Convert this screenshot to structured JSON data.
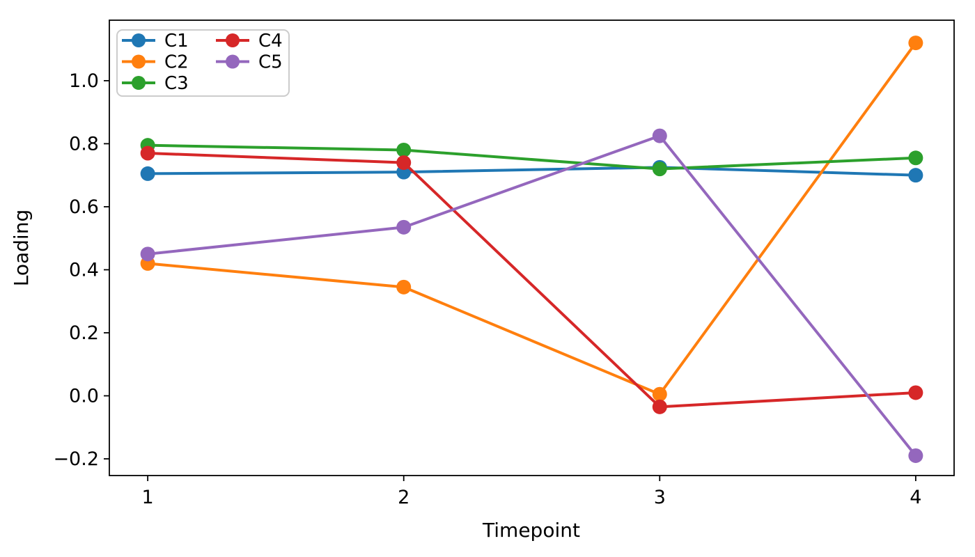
{
  "chart_data": {
    "type": "line",
    "title": "",
    "xlabel": "Timepoint",
    "ylabel": "Loading",
    "x": [
      1,
      2,
      3,
      4
    ],
    "series": [
      {
        "name": "C1",
        "color": "#1f77b4",
        "values": [
          0.705,
          0.71,
          0.725,
          0.7
        ]
      },
      {
        "name": "C2",
        "color": "#ff7f0e",
        "values": [
          0.42,
          0.345,
          0.005,
          1.12
        ]
      },
      {
        "name": "C3",
        "color": "#2ca02c",
        "values": [
          0.795,
          0.78,
          0.72,
          0.755
        ]
      },
      {
        "name": "C4",
        "color": "#d62728",
        "values": [
          0.77,
          0.74,
          -0.035,
          0.01
        ]
      },
      {
        "name": "C5",
        "color": "#9467bd",
        "values": [
          0.45,
          0.535,
          0.825,
          -0.19
        ]
      }
    ],
    "xticks": [
      {
        "v": 1,
        "label": "1"
      },
      {
        "v": 2,
        "label": "2"
      },
      {
        "v": 3,
        "label": "3"
      },
      {
        "v": 4,
        "label": "4"
      }
    ],
    "yticks": [
      {
        "v": -0.2,
        "label": "−0.2"
      },
      {
        "v": 0.0,
        "label": "0.0"
      },
      {
        "v": 0.2,
        "label": "0.2"
      },
      {
        "v": 0.4,
        "label": "0.4"
      },
      {
        "v": 0.6,
        "label": "0.6"
      },
      {
        "v": 0.8,
        "label": "0.8"
      },
      {
        "v": 1.0,
        "label": "1.0"
      }
    ],
    "xlim": [
      0.85,
      4.15
    ],
    "ylim": [
      -0.253,
      1.192
    ],
    "grid": false,
    "marker": "circle",
    "legend": {
      "location": "upper left",
      "columns": 2,
      "entries": [
        "C1",
        "C2",
        "C3",
        "C4",
        "C5"
      ]
    }
  }
}
